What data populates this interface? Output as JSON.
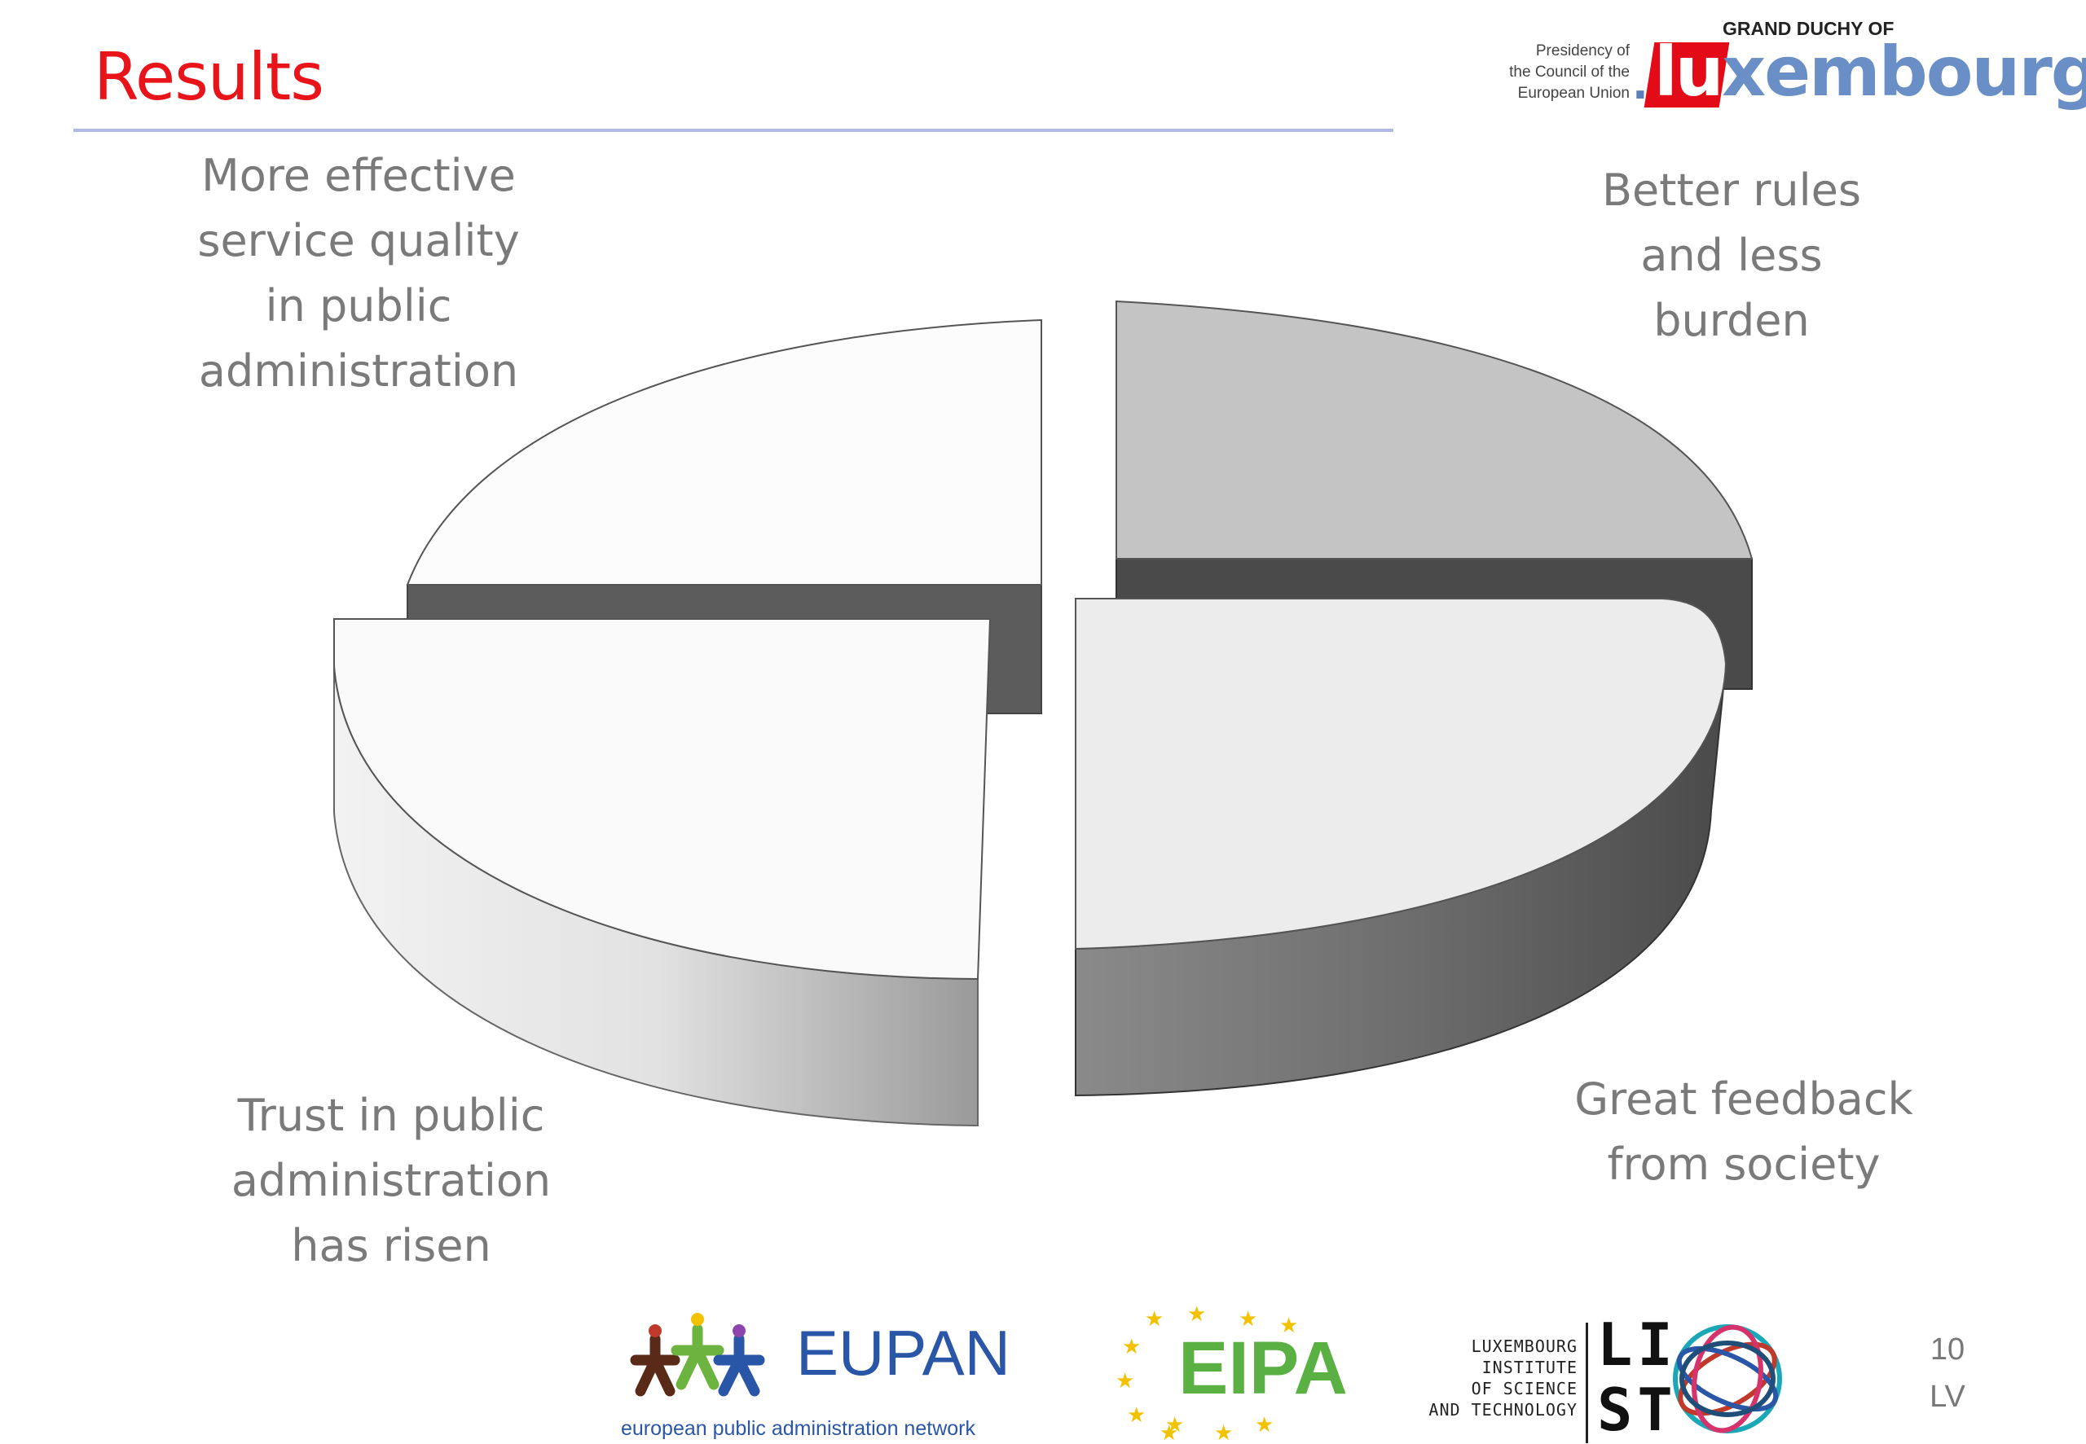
{
  "header": {
    "title": "Results",
    "presidency": "Presidency of\nthe Council of the\nEuropean Union",
    "duchy": "GRAND DUCHY OF",
    "logo_dot": ".",
    "logo_lu": "lu",
    "logo_rest": "xembourg"
  },
  "chart_data": {
    "type": "pie",
    "style": "3d-exploded",
    "slices": [
      {
        "label": "More effective\nservice quality\nin public\nadministration",
        "value": 25,
        "color": "#fcfcfc"
      },
      {
        "label": "Better rules\nand less\nburden",
        "value": 25,
        "color": "#c4c4c4"
      },
      {
        "label": "Great feedback\nfrom society",
        "value": 25,
        "color": "#ececec"
      },
      {
        "label": "Trust in public\nadministration\nhas risen",
        "value": 25,
        "color": "#fafafa"
      }
    ]
  },
  "footer": {
    "eupan": "EUPAN",
    "eupan_sub": "european public administration network",
    "eipa": "EIPA",
    "list_lines": "LUXEMBOURG\nINSTITUTE\nOF SCIENCE\nAND TECHNOLOGY",
    "list_l1": "LI",
    "list_l2": "ST",
    "page_number": "10",
    "page_code": "LV"
  }
}
